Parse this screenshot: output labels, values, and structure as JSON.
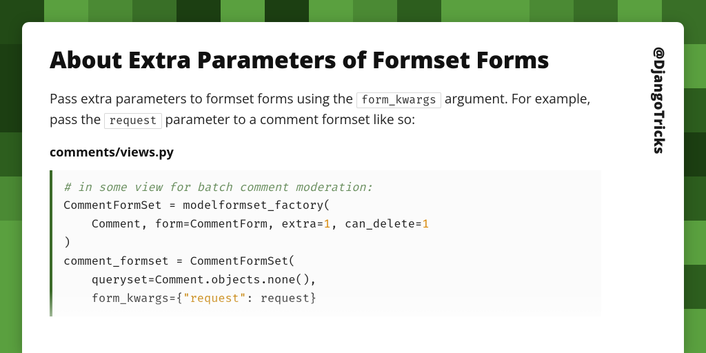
{
  "background": {
    "cols": 16,
    "rows": 8,
    "palette": [
      "#224a16",
      "#2d5e1e",
      "#396f27",
      "#4b8a34",
      "#5aa03f",
      "#1c3f12"
    ]
  },
  "card": {
    "handle": "@DjangoTricks",
    "title": "About Extra Parameters of Formset Forms",
    "intro_parts": {
      "p1": "Pass extra parameters to formset forms using the ",
      "code1": "form_kwargs",
      "p2": " argument. For example, pass the ",
      "code2": "request",
      "p3": " parameter to a comment formset like so:"
    },
    "filename": "comments/views.py",
    "code": {
      "comment": "# in some view for batch comment moderation:",
      "l2a": "CommentFormSet = modelformset_factory(",
      "l3a": "    Comment, form=CommentForm, extra=",
      "l3n1": "1",
      "l3b": ", can_delete=",
      "l3n2": "1",
      "l4a": ")",
      "l5a": "comment_formset = CommentFormSet(",
      "l6a": "    queryset=Comment.objects.none(),",
      "l7a": "    form_kwargs={",
      "l7s": "\"request\"",
      "l7b": ": request}"
    }
  }
}
